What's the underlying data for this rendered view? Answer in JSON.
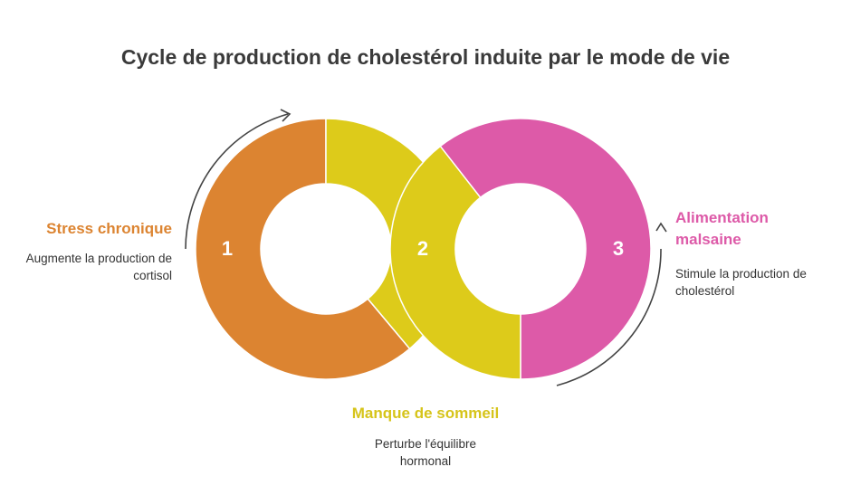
{
  "title": "Cycle de production de cholestérol induite par le mode de vie",
  "nodes": [
    {
      "number": "1",
      "label": "Stress chronique",
      "description": "Augmente la production de cortisol"
    },
    {
      "number": "2",
      "label": "Manque de sommeil",
      "description": "Perturbe l'équilibre hormonal"
    },
    {
      "number": "3",
      "label": "Alimentation malsaine",
      "description": "Stimule la production de cholestérol"
    }
  ]
}
